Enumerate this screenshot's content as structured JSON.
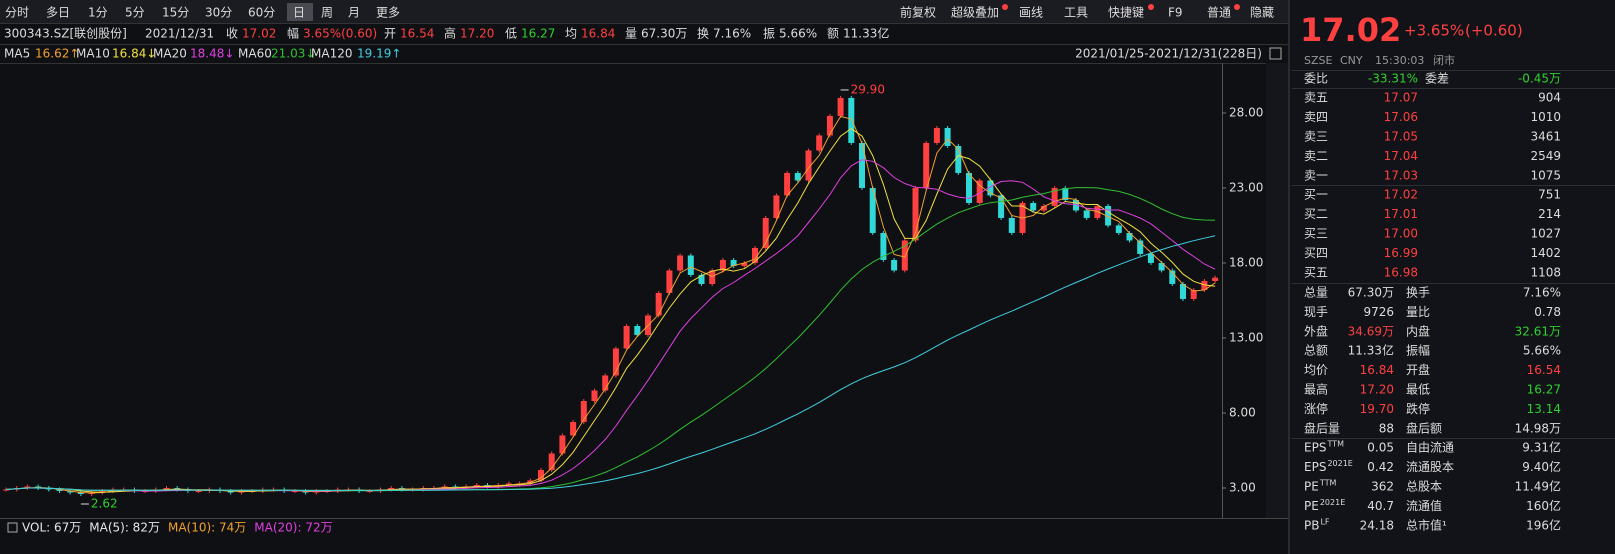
{
  "toolbar": {
    "periods": [
      "分时",
      "多日",
      "1分",
      "5分",
      "15分",
      "30分",
      "60分",
      "日",
      "周",
      "月",
      "更多"
    ],
    "active": 7,
    "tools": [
      "前复权",
      "超级叠加",
      "画线",
      "工具",
      "快捷键",
      "F9",
      "普通",
      "隐藏"
    ]
  },
  "quote_bar": {
    "code": "300343.SZ[联创股份]",
    "date": "2021/12/31",
    "items": [
      {
        "label": "收",
        "value": "17.02",
        "tone": "up"
      },
      {
        "label": "幅",
        "value": "3.65%(0.60)",
        "tone": "up"
      },
      {
        "label": "开",
        "value": "16.54",
        "tone": "up"
      },
      {
        "label": "高",
        "value": "17.20",
        "tone": "up"
      },
      {
        "label": "低",
        "value": "16.27",
        "tone": "down"
      },
      {
        "label": "均",
        "value": "16.84",
        "tone": "up"
      },
      {
        "label": "量",
        "value": "67.30万"
      },
      {
        "label": "换",
        "value": "7.16%"
      },
      {
        "label": "振",
        "value": "5.66%"
      },
      {
        "label": "额",
        "value": "11.33亿"
      }
    ]
  },
  "ma_legend": [
    {
      "name": "MA5",
      "value": "16.62↑",
      "color": "#f0a030"
    },
    {
      "name": "MA10",
      "value": "16.84↓",
      "color": "#f0e040"
    },
    {
      "name": "MA20",
      "value": "18.48↓",
      "color": "#e040e0"
    },
    {
      "name": "MA60",
      "value": "21.03↓",
      "color": "#30c030"
    },
    {
      "name": "MA120",
      "value": "19.19↑",
      "color": "#40d0e0"
    }
  ],
  "range": "2021/01/25-2021/12/31(228日)",
  "chart_data": {
    "type": "candlestick",
    "closes": [
      2.9,
      3.0,
      3.1,
      3.0,
      2.9,
      2.8,
      2.7,
      2.6,
      2.7,
      2.8,
      2.9,
      2.9,
      2.8,
      2.8,
      2.9,
      3.0,
      2.9,
      2.8,
      2.8,
      2.9,
      2.8,
      2.7,
      2.8,
      2.8,
      2.9,
      2.9,
      2.8,
      2.8,
      2.7,
      2.8,
      2.8,
      2.9,
      2.9,
      2.8,
      2.8,
      2.9,
      3.0,
      2.9,
      2.9,
      3.0,
      3.0,
      3.1,
      3.0,
      3.1,
      3.2,
      3.1,
      3.2,
      3.3,
      3.3,
      3.5,
      4.2,
      5.3,
      6.5,
      7.4,
      8.8,
      9.5,
      10.5,
      12.3,
      13.8,
      13.2,
      14.5,
      16.0,
      17.5,
      18.5,
      17.2,
      16.6,
      17.5,
      18.2,
      17.8,
      18.0,
      19.0,
      21.0,
      22.5,
      24.0,
      23.5,
      25.5,
      26.5,
      27.8,
      29.0,
      26.0,
      23.0,
      20.0,
      18.2,
      17.5,
      19.5,
      23.0,
      26.0,
      27.0,
      25.8,
      24.0,
      22.0,
      23.5,
      22.5,
      21.0,
      20.0,
      22.0,
      21.5,
      21.8,
      23.0,
      22.2,
      21.5,
      21.0,
      21.8,
      20.5,
      20.0,
      19.5,
      18.6,
      18.0,
      17.5,
      16.6,
      15.6,
      16.2,
      16.8,
      17.02
    ],
    "ylim": [
      1,
      31.33
    ],
    "yticks": [
      {
        "value": 3,
        "label": "3.00"
      },
      {
        "value": 8,
        "label": "8.00"
      },
      {
        "value": 13,
        "label": "13.00"
      },
      {
        "value": 18,
        "label": "18.00"
      },
      {
        "value": 23,
        "label": "23.00"
      },
      {
        "value": 28,
        "label": "28.00"
      }
    ],
    "high_label": "29.90",
    "low_label": "2.62"
  },
  "volume_legend": [
    {
      "label": "VOL: 67万",
      "color": "#e6e6e6"
    },
    {
      "label": "MA(5): 82万",
      "color": "#e6e6e6"
    },
    {
      "label": "MA(10): 74万",
      "color": "#f0a030"
    },
    {
      "label": "MA(20): 72万",
      "color": "#e040e0"
    }
  ],
  "panel": {
    "price": "17.02",
    "change_pct": "+3.65%",
    "change": "(+0.60)",
    "meta": [
      "SZSE",
      "CNY",
      "15:30:03",
      "闭市"
    ],
    "ratio": {
      "label": "委比",
      "value": "-33.31%",
      "label2": "委差",
      "value2": "-0.45万"
    },
    "asks": [
      {
        "label": "卖五",
        "price": "17.07",
        "volume": "904"
      },
      {
        "label": "卖四",
        "price": "17.06",
        "volume": "1010"
      },
      {
        "label": "卖三",
        "price": "17.05",
        "volume": "3461"
      },
      {
        "label": "卖二",
        "price": "17.04",
        "volume": "2549"
      },
      {
        "label": "卖一",
        "price": "17.03",
        "volume": "1075"
      }
    ],
    "bids": [
      {
        "label": "买一",
        "price": "17.02",
        "volume": "751"
      },
      {
        "label": "买二",
        "price": "17.01",
        "volume": "214"
      },
      {
        "label": "买三",
        "price": "17.00",
        "volume": "1027"
      },
      {
        "label": "买四",
        "price": "16.99",
        "volume": "1402"
      },
      {
        "label": "买五",
        "price": "16.98",
        "volume": "1108"
      }
    ],
    "stats": [
      [
        {
          "label": "总量",
          "value": "67.30万"
        },
        {
          "label": "换手",
          "value": "7.16%"
        }
      ],
      [
        {
          "label": "现手",
          "value": "9726"
        },
        {
          "label": "量比",
          "value": "0.78"
        }
      ],
      [
        {
          "label": "外盘",
          "value": "34.69万",
          "tone": "up"
        },
        {
          "label": "内盘",
          "value": "32.61万",
          "tone": "down"
        }
      ],
      [
        {
          "label": "总额",
          "value": "11.33亿"
        },
        {
          "label": "振幅",
          "value": "5.66%"
        }
      ],
      [
        {
          "label": "均价",
          "value": "16.84",
          "tone": "up"
        },
        {
          "label": "开盘",
          "value": "16.54",
          "tone": "up"
        }
      ],
      [
        {
          "label": "最高",
          "value": "17.20",
          "tone": "up"
        },
        {
          "label": "最低",
          "value": "16.27",
          "tone": "down"
        }
      ],
      [
        {
          "label": "涨停",
          "value": "19.70",
          "tone": "up"
        },
        {
          "label": "跌停",
          "value": "13.14",
          "tone": "down"
        }
      ],
      [
        {
          "label": "盘后量",
          "value": "88"
        },
        {
          "label": "盘后额",
          "value": "14.98万"
        }
      ],
      [
        {
          "label": "EPS",
          "sup": "TTM",
          "value": "0.05"
        },
        {
          "label": "自由流通",
          "value": "9.31亿"
        }
      ],
      [
        {
          "label": "EPS",
          "sup": "2021E",
          "value": "0.42"
        },
        {
          "label": "流通股本",
          "value": "9.40亿"
        }
      ],
      [
        {
          "label": "PE",
          "sup": "TTM",
          "value": "362"
        },
        {
          "label": "总股本",
          "value": "11.49亿"
        }
      ],
      [
        {
          "label": "PE",
          "sup": "2021E",
          "value": "40.7"
        },
        {
          "label": "流通值",
          "value": "160亿"
        }
      ],
      [
        {
          "label": "PB",
          "sup": "LF",
          "value": "24.18"
        },
        {
          "label": "总市值¹",
          "value": "196亿"
        }
      ]
    ]
  }
}
